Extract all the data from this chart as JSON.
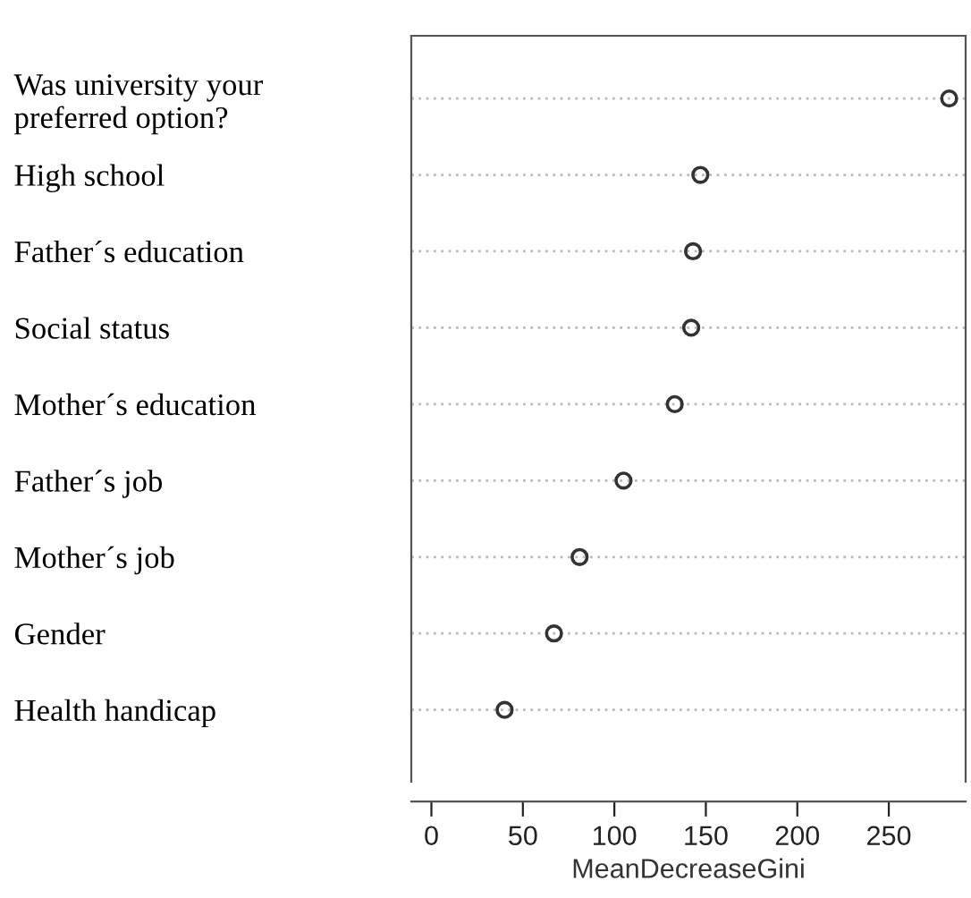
{
  "chart_data": {
    "type": "scatter",
    "orientation": "horizontal",
    "xlabel": "MeanDecreaseGini",
    "categories": [
      "Was university your\npreferred option?",
      "High school",
      "Father´s education",
      "Social status",
      "Mother´s education",
      "Father´s job",
      "Mother´s job",
      "Gender",
      "Health handicap"
    ],
    "values": [
      283,
      147,
      143,
      142,
      133,
      105,
      81,
      67,
      40
    ],
    "color": "#333333",
    "marker": "circle",
    "grid": "y",
    "xlim": [
      -11,
      292
    ],
    "xticks": [
      0,
      50,
      100,
      150,
      200,
      250
    ]
  }
}
